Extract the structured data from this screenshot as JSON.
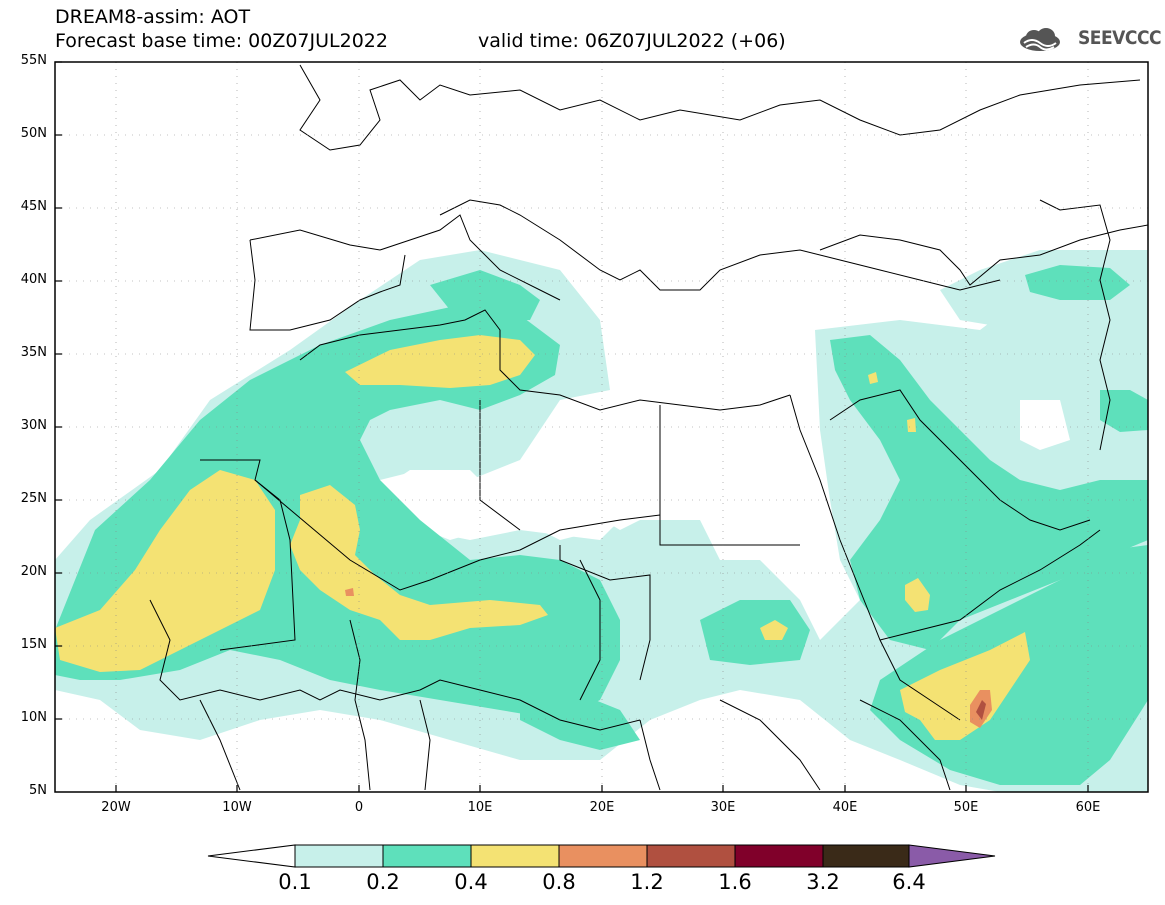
{
  "header": {
    "line1": "DREAM8-assim: AOT",
    "line2": "Forecast base time: 00Z07JUL2022",
    "line3": "valid time: 06Z07JUL2022 (+06)",
    "logo_text": "SEEVCCC"
  },
  "map": {
    "variable": "AOT",
    "lat_labels": [
      "55N",
      "50N",
      "45N",
      "40N",
      "35N",
      "30N",
      "25N",
      "20N",
      "15N",
      "10N",
      "5N"
    ],
    "lon_labels": [
      "20W",
      "10W",
      "0",
      "10E",
      "20E",
      "30E",
      "40E",
      "50E",
      "60E"
    ],
    "lat_range": [
      5,
      55
    ],
    "lon_range": [
      -25,
      65
    ],
    "grid": true
  },
  "colorbar": {
    "levels": [
      "0.1",
      "0.2",
      "0.4",
      "0.8",
      "1.2",
      "1.6",
      "3.2",
      "6.4"
    ],
    "colors": [
      "#ffffff",
      "#c7f0ea",
      "#5ee0bb",
      "#f4e273",
      "#e99060",
      "#b05040",
      "#80002a",
      "#3a2a18",
      "#8a5ba8"
    ]
  }
}
